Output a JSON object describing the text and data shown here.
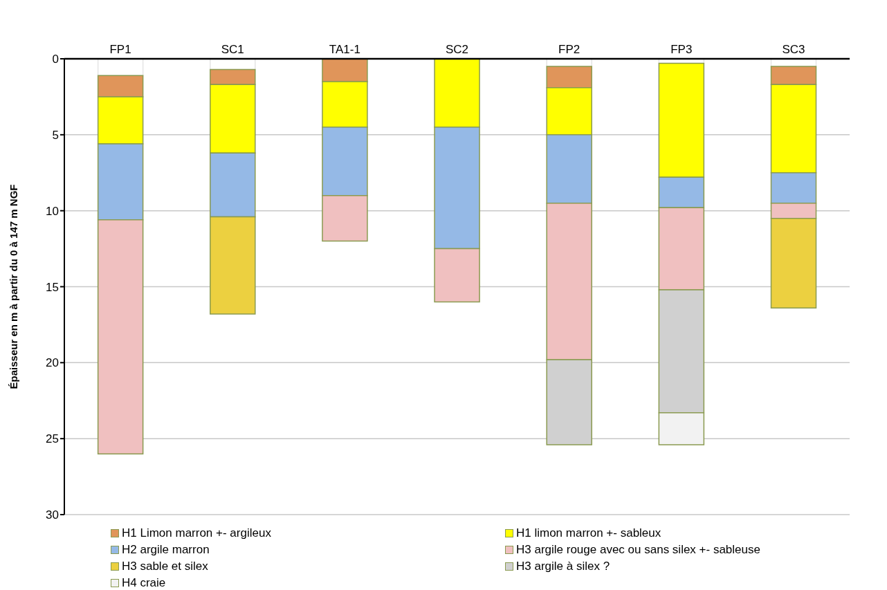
{
  "chart_data": {
    "type": "bar",
    "stacked": true,
    "ylabel": "Épaisseur en m à partir du 0 à 147 m NGF",
    "categories": [
      "FP1",
      "SC1",
      "TA1-1",
      "SC2",
      "FP2",
      "FP3",
      "SC3"
    ],
    "series": [
      {
        "color": "#ffffff",
        "values": [
          1.1,
          0.7,
          null,
          null,
          0.5,
          0.3,
          0.5
        ]
      },
      {
        "name": "H1 Limon marron +- argileux",
        "color": "#e0955a",
        "values": [
          1.4,
          1.0,
          1.5,
          null,
          1.4,
          null,
          1.2
        ]
      },
      {
        "name": "H1 limon marron +- sableux",
        "color": "#ffff00",
        "values": [
          3.1,
          4.5,
          3.0,
          4.5,
          3.1,
          7.5,
          5.8
        ]
      },
      {
        "name": "H2 argile marron",
        "color": "#95b9e6",
        "values": [
          5.0,
          4.2,
          4.5,
          8.0,
          4.5,
          2.0,
          2.0
        ]
      },
      {
        "name": "H3 argile rouge avec ou sans silex +- sableuse",
        "color": "#f0c0c0",
        "values": [
          15.4,
          null,
          3.0,
          3.5,
          10.3,
          5.4,
          1.0
        ]
      },
      {
        "name": "H3 sable et silex",
        "color": "#ecd040",
        "values": [
          null,
          6.4,
          null,
          null,
          null,
          null,
          5.9
        ]
      },
      {
        "name": "H3 argile à silex ?",
        "color": "#d0d0d0",
        "values": [
          null,
          null,
          null,
          null,
          5.6,
          8.1,
          null
        ]
      },
      {
        "name": "H4 craie",
        "color": "#f2f2f2",
        "values": [
          null,
          null,
          null,
          null,
          null,
          2.1,
          null
        ]
      }
    ],
    "ylim": [
      30,
      0
    ],
    "yticks": [
      0,
      5,
      10,
      15,
      20,
      25,
      30
    ],
    "grid": "y",
    "legend": "bottom"
  }
}
